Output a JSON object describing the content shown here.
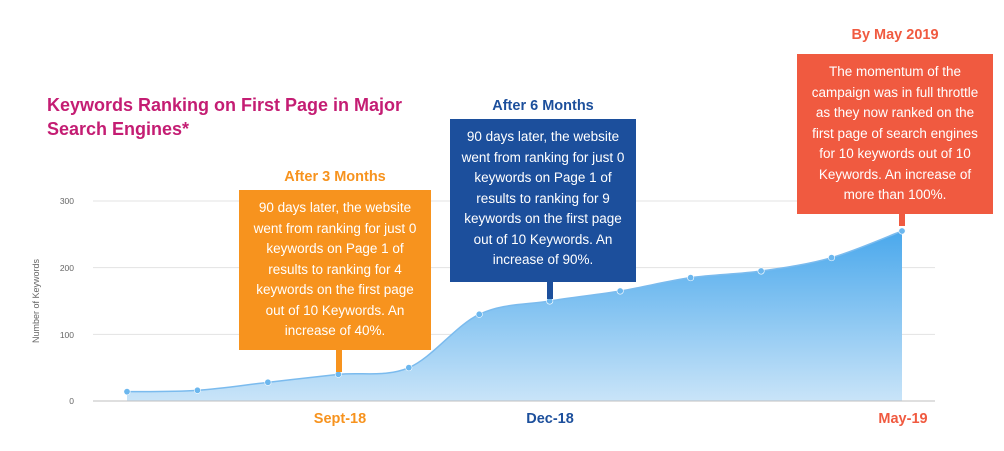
{
  "title": "Keywords Ranking on First Page in Major Search Engines*",
  "colors": {
    "title": "#c41d73",
    "orange": "#f7931e",
    "blue": "#1c4f9c",
    "red": "#f05a40",
    "area_fill": "#5cb6ee",
    "line": "#7bbbee"
  },
  "callouts": [
    {
      "heading": "After 3 Months",
      "text": "90 days later, the website went from ranking for just 0 keywords on Page 1 of results to ranking for 4 keywords on the first page out of 10 Keywords. An increase of 40%."
    },
    {
      "heading": "After 6 Months",
      "text": "90 days later, the website went from ranking for just 0 keywords on Page 1 of results to ranking for 9 keywords on the first page out of 10 Keywords. An increase of 90%."
    },
    {
      "heading": "By May 2019",
      "text": "The momentum of the campaign was in full throttle as they now ranked on the first page of search engines for 10 keywords out of 10 Keywords. An increase of more than 100%."
    }
  ],
  "chart_data": {
    "type": "area",
    "title": "Keywords Ranking on First Page in Major Search Engines*",
    "ylabel": "Number of Keywords",
    "xlabel": "",
    "ylim": [
      0,
      300
    ],
    "yticks": [
      0,
      100,
      200,
      300
    ],
    "grid": true,
    "x_labels": [
      {
        "label": "Sept-18",
        "point_index": 4,
        "color": "#f7931e"
      },
      {
        "label": "Dec-18",
        "point_index": 6,
        "color": "#1c4f9c"
      },
      {
        "label": "May-19",
        "point_index": 12,
        "color": "#f05a40"
      }
    ],
    "series": [
      {
        "values": [
          14,
          16,
          28,
          40,
          50,
          130,
          150,
          165,
          185,
          195,
          215,
          255
        ]
      }
    ]
  }
}
